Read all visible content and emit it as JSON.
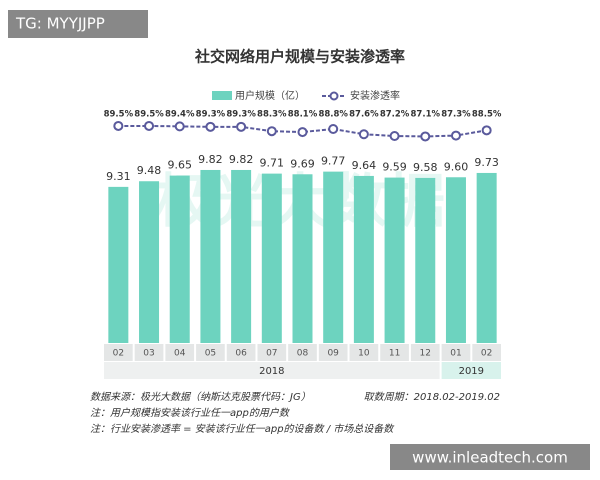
{
  "watermarks": {
    "top_left": "TG: MYYJJPP",
    "bottom_right": "www.inleadtech.com",
    "logo": "极光大数据"
  },
  "chart_data": {
    "type": "bar",
    "title": "社交网络用户规模与安装渗透率",
    "categories": [
      "02",
      "03",
      "04",
      "05",
      "06",
      "07",
      "08",
      "09",
      "10",
      "11",
      "12",
      "01",
      "02"
    ],
    "year_groups": [
      {
        "label": "2018",
        "span": 11
      },
      {
        "label": "2019",
        "span": 2
      }
    ],
    "ylim": [
      4.6,
      10
    ],
    "y2lim": [
      84,
      92
    ],
    "series": [
      {
        "name": "用户规模（亿）",
        "type": "bar",
        "color": "#6dd3bf",
        "values": [
          9.31,
          9.48,
          9.65,
          9.82,
          9.82,
          9.71,
          9.69,
          9.77,
          9.64,
          9.59,
          9.58,
          9.6,
          9.73
        ],
        "value_labels": [
          "9.31",
          "9.48",
          "9.65",
          "9.82",
          "9.82",
          "9.71",
          "9.69",
          "9.77",
          "9.64",
          "9.59",
          "9.58",
          "9.60",
          "9.73"
        ]
      },
      {
        "name": "安装渗透率",
        "type": "line",
        "axis": "y2",
        "color": "#5a5a9c",
        "values": [
          89.5,
          89.5,
          89.4,
          89.3,
          89.3,
          88.3,
          88.1,
          88.8,
          87.6,
          87.2,
          87.1,
          87.3,
          88.5
        ],
        "value_labels": [
          "89.5%",
          "89.5%",
          "89.4%",
          "89.3%",
          "89.3%",
          "88.3%",
          "88.1%",
          "88.8%",
          "87.6%",
          "87.2%",
          "87.1%",
          "87.3%",
          "88.5%"
        ]
      }
    ],
    "notes": [
      "数据来源：极光大数据（纳斯达克股票代码：JG）",
      "取数周期：2018.02-2019.02",
      "注：用户规模指安装该行业任一app的用户数",
      "注：行业安装渗透率 = 安装该行业任一app的设备数 / 市场总设备数"
    ]
  }
}
